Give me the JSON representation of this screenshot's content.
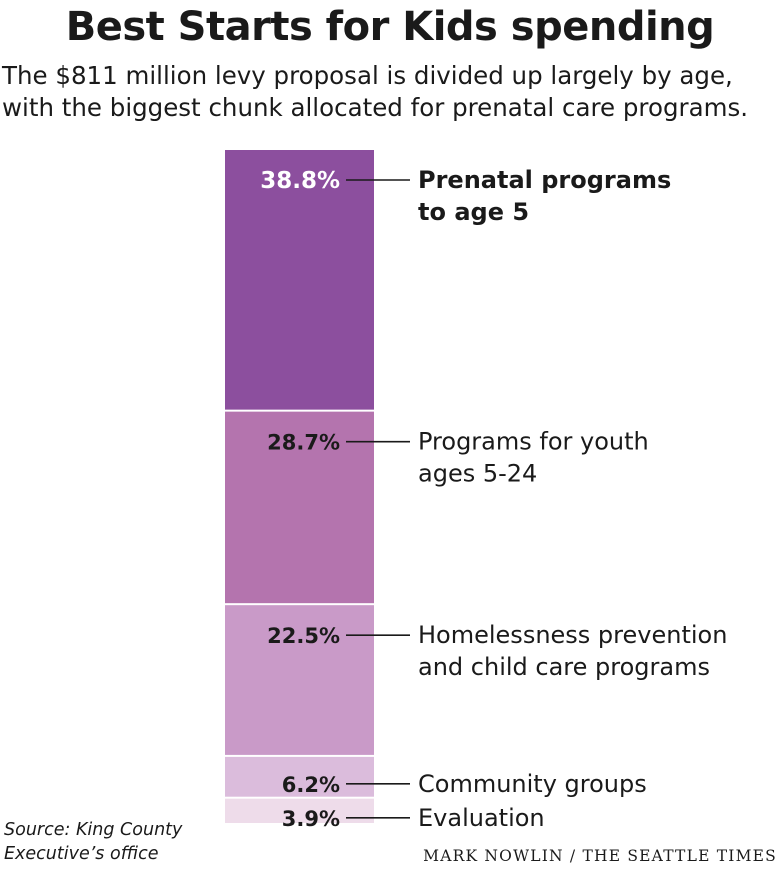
{
  "title": "Best Starts for Kids spending",
  "subtitle_lines": [
    "The $811 million levy proposal is divided up largely by age,",
    "with the biggest chunk allocated for prenatal care programs."
  ],
  "source_lines": [
    "Source: King County",
    "Executive’s office"
  ],
  "credit": "MARK NOWLIN / THE SEATTLE TIMES",
  "colors": {
    "segments": [
      "#8c4f9e",
      "#b474ae",
      "#c99ac8",
      "#dbbcdc",
      "#eedcea"
    ],
    "text": "#1a1a1a",
    "label_on_dark": "#ffffff"
  },
  "chart_data": {
    "type": "bar",
    "stacked": true,
    "title": "",
    "xlabel": "",
    "ylabel": "",
    "ylim": [
      0,
      100
    ],
    "categories": [
      "Prenatal programs to age 5",
      "Programs for youth ages 5-24",
      "Homelessness prevention and child care programs",
      "Community groups",
      "Evaluation"
    ],
    "values": [
      38.8,
      28.7,
      22.5,
      6.2,
      3.9
    ],
    "value_labels": [
      "38.8%",
      "28.7%",
      "22.5%",
      "6.2%",
      "3.9%"
    ],
    "category_label_lines": [
      [
        "Prenatal programs",
        "to age 5"
      ],
      [
        "Programs for youth",
        "ages 5-24"
      ],
      [
        "Homelessness prevention",
        "and child care programs"
      ],
      [
        "Community groups"
      ],
      [
        "Evaluation"
      ]
    ]
  }
}
